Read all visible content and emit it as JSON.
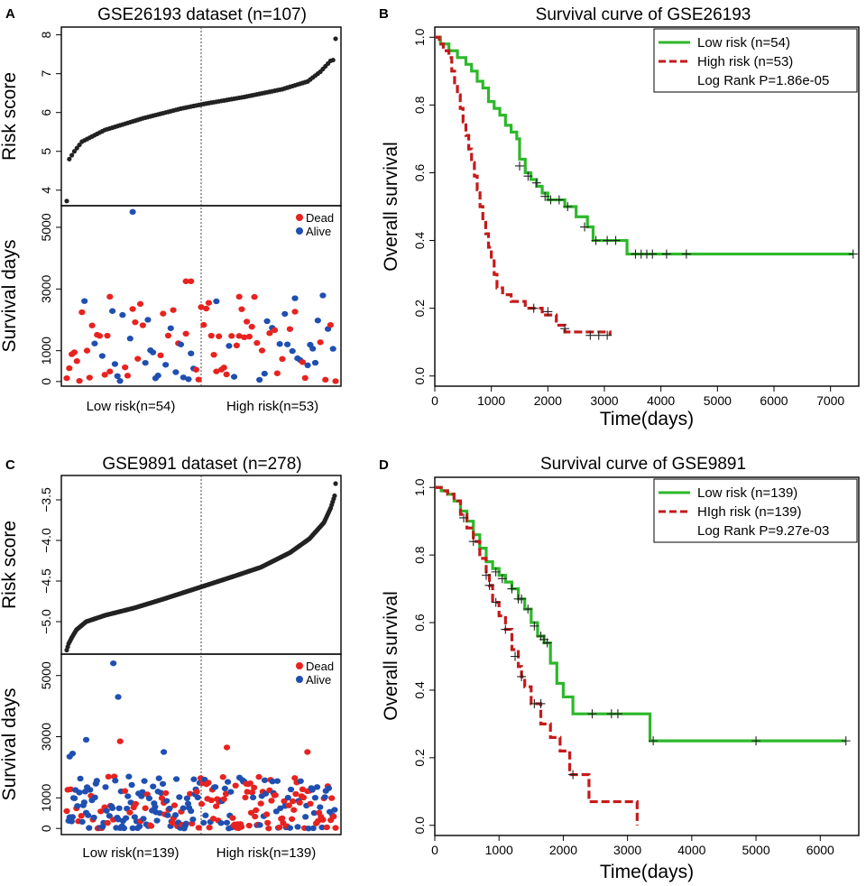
{
  "colors": {
    "dead": "#e8221f",
    "alive": "#1f4fb0",
    "risk_points": "#222222",
    "low_risk_line": "#2db82a",
    "high_risk_line": "#c41a1a"
  },
  "chart_data": [
    {
      "panel": "A",
      "type": "scatter",
      "title": "GSE26193 dataset (n=107)",
      "risk_panel": {
        "ylabel": "Risk score",
        "ylim": [
          3.6,
          8.2
        ],
        "yticks": [
          4,
          5,
          6,
          7,
          8
        ],
        "n": 107,
        "split_index": 54,
        "anchors": [
          [
            0,
            3.72
          ],
          [
            1,
            4.8
          ],
          [
            3,
            5.0
          ],
          [
            6,
            5.25
          ],
          [
            15,
            5.55
          ],
          [
            30,
            5.85
          ],
          [
            45,
            6.1
          ],
          [
            54,
            6.22
          ],
          [
            70,
            6.4
          ],
          [
            85,
            6.6
          ],
          [
            95,
            6.8
          ],
          [
            100,
            7.05
          ],
          [
            104,
            7.33
          ],
          [
            105,
            7.35
          ],
          [
            106,
            7.9
          ]
        ]
      },
      "survival_panel": {
        "ylabel": "Survival days",
        "ylim": [
          -150,
          5700
        ],
        "yticks": [
          0,
          1000,
          3000,
          5000
        ],
        "legend": [
          "Dead",
          "Alive"
        ],
        "n": 107,
        "seed": 26193,
        "dead_fraction_low": 0.55,
        "dead_fraction_high": 0.62,
        "max_day": 2800,
        "extra_points": [
          {
            "i": 26,
            "y": 5500,
            "status": "alive"
          },
          {
            "i": 47,
            "y": 3250,
            "status": "dead"
          },
          {
            "i": 49,
            "y": 3250,
            "status": "dead"
          },
          {
            "i": 17,
            "y": 2750,
            "status": "dead"
          },
          {
            "i": 59,
            "y": 2600,
            "status": "alive"
          },
          {
            "i": 68,
            "y": 2750,
            "status": "dead"
          },
          {
            "i": 90,
            "y": 2700,
            "status": "alive"
          }
        ]
      },
      "group_labels": [
        "Low  risk(n=54)",
        "High risk(n=53)"
      ]
    },
    {
      "panel": "B",
      "type": "line",
      "title": "Survival curve of GSE26193",
      "xlabel": "Time(days)",
      "ylabel": "Overall survival",
      "xlim": [
        0,
        7500
      ],
      "ylim": [
        -0.03,
        1.03
      ],
      "xticks": [
        0,
        1000,
        2000,
        3000,
        4000,
        5000,
        6000,
        7000
      ],
      "yticks": [
        0.0,
        0.2,
        0.4,
        0.6,
        0.8,
        1.0
      ],
      "legend": [
        "Low risk (n=54)",
        "High risk (n=53)",
        "Log Rank P=1.86e-05"
      ],
      "series": [
        {
          "name": "Low risk (n=54)",
          "style": "solid",
          "steps": [
            [
              0,
              1.0
            ],
            [
              100,
              0.98
            ],
            [
              250,
              0.96
            ],
            [
              400,
              0.94
            ],
            [
              550,
              0.92
            ],
            [
              650,
              0.9
            ],
            [
              750,
              0.87
            ],
            [
              850,
              0.85
            ],
            [
              950,
              0.81
            ],
            [
              1050,
              0.79
            ],
            [
              1150,
              0.77
            ],
            [
              1250,
              0.74
            ],
            [
              1350,
              0.72
            ],
            [
              1450,
              0.7
            ],
            [
              1500,
              0.64
            ],
            [
              1600,
              0.6
            ],
            [
              1700,
              0.58
            ],
            [
              1800,
              0.56
            ],
            [
              1900,
              0.54
            ],
            [
              2000,
              0.52
            ],
            [
              2300,
              0.5
            ],
            [
              2500,
              0.47
            ],
            [
              2700,
              0.44
            ],
            [
              2800,
              0.4
            ],
            [
              3400,
              0.36
            ],
            [
              7400,
              0.36
            ]
          ],
          "censors": [
            [
              1500,
              0.62
            ],
            [
              1650,
              0.59
            ],
            [
              1800,
              0.57
            ],
            [
              1950,
              0.53
            ],
            [
              2050,
              0.52
            ],
            [
              2200,
              0.52
            ],
            [
              2350,
              0.5
            ],
            [
              2650,
              0.44
            ],
            [
              2850,
              0.4
            ],
            [
              3050,
              0.4
            ],
            [
              3200,
              0.4
            ],
            [
              3550,
              0.36
            ],
            [
              3650,
              0.36
            ],
            [
              3750,
              0.36
            ],
            [
              3850,
              0.36
            ],
            [
              4100,
              0.36
            ],
            [
              4450,
              0.36
            ],
            [
              7400,
              0.36
            ]
          ]
        },
        {
          "name": "High risk (n=53)",
          "style": "dashed",
          "steps": [
            [
              0,
              1.0
            ],
            [
              80,
              0.98
            ],
            [
              150,
              0.96
            ],
            [
              250,
              0.94
            ],
            [
              300,
              0.9
            ],
            [
              350,
              0.86
            ],
            [
              400,
              0.83
            ],
            [
              450,
              0.79
            ],
            [
              500,
              0.75
            ],
            [
              550,
              0.71
            ],
            [
              600,
              0.67
            ],
            [
              650,
              0.63
            ],
            [
              700,
              0.59
            ],
            [
              750,
              0.55
            ],
            [
              800,
              0.5
            ],
            [
              850,
              0.46
            ],
            [
              900,
              0.42
            ],
            [
              950,
              0.38
            ],
            [
              1000,
              0.34
            ],
            [
              1050,
              0.3
            ],
            [
              1100,
              0.26
            ],
            [
              1200,
              0.24
            ],
            [
              1350,
              0.22
            ],
            [
              1600,
              0.2
            ],
            [
              1900,
              0.18
            ],
            [
              2150,
              0.15
            ],
            [
              2300,
              0.13
            ],
            [
              3100,
              0.12
            ]
          ],
          "censors": [
            [
              1750,
              0.2
            ],
            [
              2000,
              0.19
            ],
            [
              2300,
              0.14
            ],
            [
              2750,
              0.12
            ],
            [
              2900,
              0.12
            ],
            [
              3050,
              0.12
            ]
          ]
        }
      ]
    },
    {
      "panel": "C",
      "type": "scatter",
      "title": "GSE9891 dataset (n=278)",
      "risk_panel": {
        "ylabel": "Risk score",
        "ylim": [
          -5.4,
          -3.2
        ],
        "yticks": [
          -5.0,
          -4.5,
          -4.0,
          -3.5
        ],
        "n": 278,
        "split_index": 139,
        "anchors": [
          [
            0,
            -5.35
          ],
          [
            2,
            -5.27
          ],
          [
            5,
            -5.2
          ],
          [
            10,
            -5.1
          ],
          [
            20,
            -5.0
          ],
          [
            40,
            -4.92
          ],
          [
            70,
            -4.83
          ],
          [
            100,
            -4.72
          ],
          [
            139,
            -4.57
          ],
          [
            170,
            -4.45
          ],
          [
            200,
            -4.33
          ],
          [
            230,
            -4.15
          ],
          [
            250,
            -3.98
          ],
          [
            265,
            -3.78
          ],
          [
            272,
            -3.6
          ],
          [
            276,
            -3.45
          ],
          [
            277,
            -3.3
          ]
        ]
      },
      "survival_panel": {
        "ylabel": "Survival days",
        "ylim": [
          -200,
          5700
        ],
        "yticks": [
          0,
          1000,
          3000,
          5000
        ],
        "legend": [
          "Dead",
          "Alive"
        ],
        "n": 278,
        "seed": 9891,
        "dead_fraction_low": 0.38,
        "dead_fraction_high": 0.55,
        "max_day": 1700,
        "extra_points": [
          {
            "i": 3,
            "y": 2350,
            "status": "alive"
          },
          {
            "i": 6,
            "y": 2450,
            "status": "alive"
          },
          {
            "i": 20,
            "y": 2900,
            "status": "alive"
          },
          {
            "i": 48,
            "y": 5400,
            "status": "alive"
          },
          {
            "i": 53,
            "y": 4300,
            "status": "alive"
          },
          {
            "i": 55,
            "y": 2850,
            "status": "dead"
          },
          {
            "i": 100,
            "y": 2500,
            "status": "alive"
          },
          {
            "i": 165,
            "y": 2650,
            "status": "dead"
          },
          {
            "i": 248,
            "y": 2500,
            "status": "dead"
          }
        ]
      },
      "group_labels": [
        "Low  risk(n=139)",
        "High risk(n=139)"
      ]
    },
    {
      "panel": "D",
      "type": "line",
      "title": "Survival curve of GSE9891",
      "xlabel": "Time(days)",
      "ylabel": "Overall survival",
      "xlim": [
        0,
        6600
      ],
      "ylim": [
        -0.03,
        1.03
      ],
      "xticks": [
        0,
        1000,
        2000,
        3000,
        4000,
        5000,
        6000
      ],
      "yticks": [
        0.0,
        0.2,
        0.4,
        0.6,
        0.8,
        1.0
      ],
      "legend": [
        "Low risk (n=139)",
        "HIgh risk (n=139)",
        "Log Rank P=9.27e-03"
      ],
      "series": [
        {
          "name": "Low risk (n=139)",
          "style": "solid",
          "steps": [
            [
              0,
              1.0
            ],
            [
              100,
              0.99
            ],
            [
              200,
              0.98
            ],
            [
              300,
              0.96
            ],
            [
              400,
              0.93
            ],
            [
              500,
              0.9
            ],
            [
              600,
              0.86
            ],
            [
              700,
              0.82
            ],
            [
              800,
              0.78
            ],
            [
              900,
              0.76
            ],
            [
              1000,
              0.74
            ],
            [
              1100,
              0.72
            ],
            [
              1200,
              0.7
            ],
            [
              1300,
              0.67
            ],
            [
              1400,
              0.64
            ],
            [
              1500,
              0.6
            ],
            [
              1600,
              0.56
            ],
            [
              1700,
              0.54
            ],
            [
              1800,
              0.48
            ],
            [
              1900,
              0.42
            ],
            [
              2000,
              0.38
            ],
            [
              2150,
              0.33
            ],
            [
              3350,
              0.25
            ],
            [
              6400,
              0.25
            ]
          ],
          "censors": [
            [
              950,
              0.75
            ],
            [
              1050,
              0.73
            ],
            [
              1200,
              0.7
            ],
            [
              1300,
              0.67
            ],
            [
              1350,
              0.67
            ],
            [
              1450,
              0.64
            ],
            [
              1550,
              0.59
            ],
            [
              1650,
              0.56
            ],
            [
              1700,
              0.55
            ],
            [
              1750,
              0.54
            ],
            [
              2450,
              0.33
            ],
            [
              2750,
              0.33
            ],
            [
              2850,
              0.33
            ],
            [
              3400,
              0.25
            ],
            [
              5000,
              0.25
            ],
            [
              6400,
              0.25
            ]
          ]
        },
        {
          "name": "HIgh risk (n=139)",
          "style": "dashed",
          "steps": [
            [
              0,
              1.0
            ],
            [
              100,
              0.99
            ],
            [
              200,
              0.98
            ],
            [
              300,
              0.96
            ],
            [
              400,
              0.92
            ],
            [
              500,
              0.88
            ],
            [
              600,
              0.84
            ],
            [
              700,
              0.79
            ],
            [
              800,
              0.74
            ],
            [
              850,
              0.71
            ],
            [
              900,
              0.66
            ],
            [
              1000,
              0.62
            ],
            [
              1100,
              0.58
            ],
            [
              1200,
              0.52
            ],
            [
              1300,
              0.47
            ],
            [
              1350,
              0.44
            ],
            [
              1400,
              0.41
            ],
            [
              1500,
              0.36
            ],
            [
              1650,
              0.3
            ],
            [
              1800,
              0.26
            ],
            [
              1950,
              0.22
            ],
            [
              2100,
              0.15
            ],
            [
              2400,
              0.07
            ],
            [
              3150,
              0.0
            ]
          ],
          "censors": [
            [
              450,
              0.91
            ],
            [
              600,
              0.84
            ],
            [
              800,
              0.74
            ],
            [
              850,
              0.71
            ],
            [
              950,
              0.66
            ],
            [
              1100,
              0.58
            ],
            [
              1250,
              0.5
            ],
            [
              1350,
              0.44
            ],
            [
              1550,
              0.36
            ],
            [
              1650,
              0.36
            ],
            [
              2150,
              0.15
            ]
          ]
        }
      ]
    }
  ]
}
